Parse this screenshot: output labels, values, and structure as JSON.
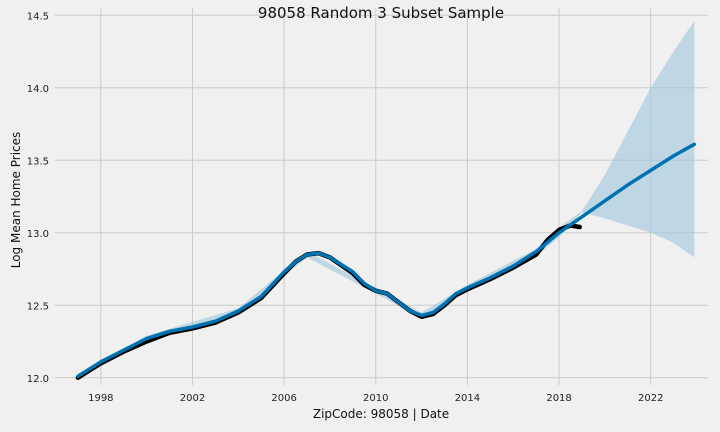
{
  "chart_data": {
    "type": "line",
    "title": "98058 Random 3 Subset Sample",
    "xlabel": "ZipCode: 98058 | Date",
    "ylabel": "Log Mean Home Prices",
    "xlim": [
      1996.0,
      2024.5
    ],
    "ylim": [
      11.95,
      14.55
    ],
    "x_ticks": [
      1998,
      2002,
      2006,
      2010,
      2014,
      2018,
      2022
    ],
    "x_tick_labels": [
      "1998",
      "2002",
      "2006",
      "2010",
      "2014",
      "2018",
      "2022"
    ],
    "y_ticks": [
      12.0,
      12.5,
      13.0,
      13.5,
      14.0,
      14.5
    ],
    "y_tick_labels": [
      "12.0",
      "12.5",
      "13.0",
      "13.5",
      "14.0",
      "14.5"
    ],
    "grid": true,
    "colors": {
      "observed": "#000000",
      "forecast": "#0072b2",
      "interval": "#9ec4dc",
      "background": "#f0f0f0",
      "grid": "#cbcbcb"
    },
    "series": [
      {
        "kind": "observed",
        "x": [
          1997.0,
          1998.0,
          1999.0,
          2000.0,
          2001.0,
          2002.0,
          2003.0,
          2004.0,
          2005.0,
          2006.0,
          2006.5,
          2007.0,
          2007.5,
          2008.0,
          2009.0,
          2009.5,
          2010.0,
          2010.5,
          2011.0,
          2011.5,
          2012.0,
          2012.5,
          2013.0,
          2013.5,
          2014.0,
          2015.0,
          2016.0,
          2017.0,
          2017.5,
          2018.0,
          2018.5,
          2018.9
        ],
        "y": [
          12.0,
          12.1,
          12.18,
          12.25,
          12.31,
          12.34,
          12.38,
          12.45,
          12.55,
          12.72,
          12.8,
          12.85,
          12.86,
          12.83,
          12.72,
          12.64,
          12.6,
          12.58,
          12.52,
          12.46,
          12.42,
          12.44,
          12.5,
          12.57,
          12.61,
          12.68,
          12.76,
          12.85,
          12.95,
          13.02,
          13.05,
          13.04
        ]
      },
      {
        "kind": "forecast",
        "x": [
          1997.0,
          1998.0,
          1999.0,
          2000.0,
          2001.0,
          2002.0,
          2003.0,
          2004.0,
          2005.0,
          2006.0,
          2006.5,
          2007.0,
          2007.5,
          2008.0,
          2009.0,
          2009.5,
          2010.0,
          2010.5,
          2011.0,
          2011.5,
          2012.0,
          2012.5,
          2013.0,
          2013.5,
          2014.0,
          2015.0,
          2016.0,
          2017.0,
          2018.0,
          2019.0,
          2020.0,
          2021.0,
          2022.0,
          2023.0,
          2023.9
        ],
        "y": [
          12.01,
          12.11,
          12.19,
          12.27,
          12.32,
          12.35,
          12.39,
          12.46,
          12.56,
          12.73,
          12.8,
          12.85,
          12.86,
          12.83,
          12.73,
          12.65,
          12.6,
          12.58,
          12.52,
          12.46,
          12.43,
          12.45,
          12.51,
          12.58,
          12.62,
          12.69,
          12.77,
          12.87,
          13.0,
          13.11,
          13.22,
          13.33,
          13.43,
          13.53,
          13.61
        ]
      }
    ],
    "interval": {
      "x": [
        1997.0,
        2000.0,
        2004.0,
        2007.0,
        2010.0,
        2012.0,
        2014.0,
        2017.0,
        2018.0,
        2019.0,
        2020.0,
        2021.0,
        2022.0,
        2023.0,
        2023.9
      ],
      "lower": [
        11.99,
        12.25,
        12.44,
        12.83,
        12.58,
        12.41,
        12.6,
        12.84,
        12.97,
        13.14,
        13.1,
        13.05,
        13.0,
        12.93,
        12.83
      ],
      "upper": [
        12.03,
        12.29,
        12.48,
        12.87,
        12.62,
        12.45,
        12.64,
        12.89,
        13.04,
        13.15,
        13.4,
        13.7,
        14.0,
        14.25,
        14.46
      ]
    }
  }
}
